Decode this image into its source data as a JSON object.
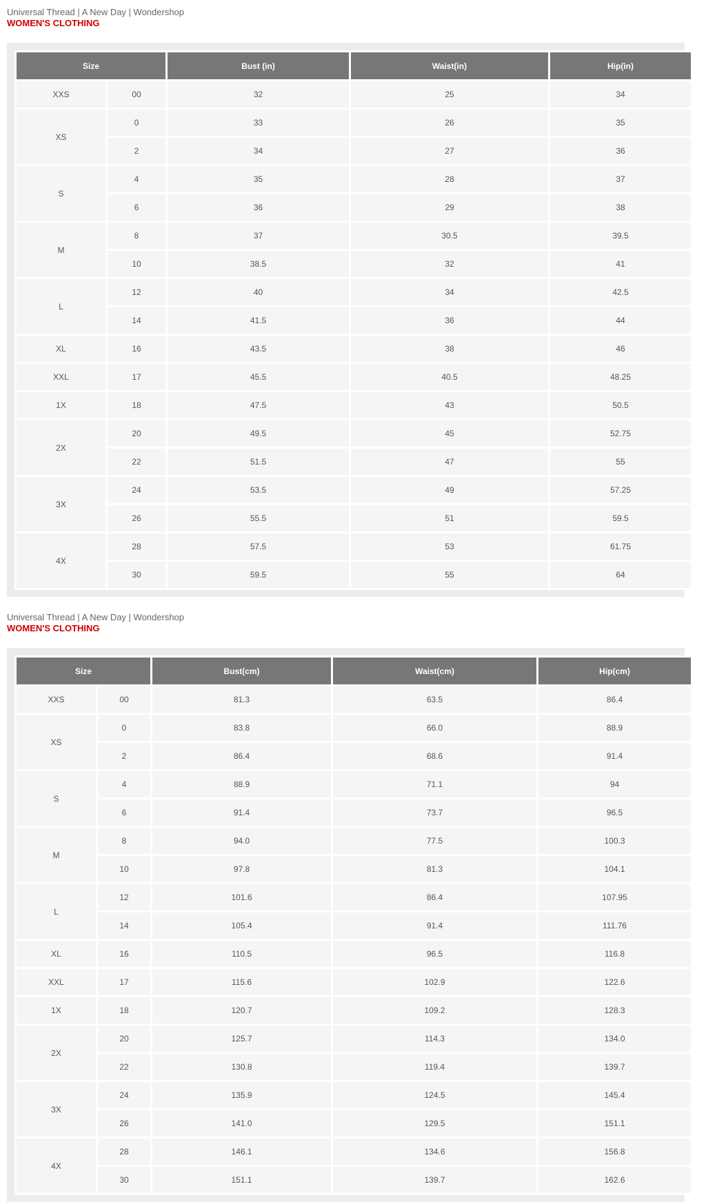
{
  "sections": [
    {
      "brands": "Universal Thread | A New Day | Wondershop",
      "title": "WOMEN'S CLOTHING",
      "headers": [
        "Size",
        "Bust (in)",
        "Waist(in)",
        "Hip(in)"
      ],
      "groups": [
        {
          "size": "XXS",
          "rows": [
            [
              "00",
              "32",
              "25",
              "34"
            ]
          ]
        },
        {
          "size": "XS",
          "rows": [
            [
              "0",
              "33",
              "26",
              "35"
            ],
            [
              "2",
              "34",
              "27",
              "36"
            ]
          ]
        },
        {
          "size": "S",
          "rows": [
            [
              "4",
              "35",
              "28",
              "37"
            ],
            [
              "6",
              "36",
              "29",
              "38"
            ]
          ]
        },
        {
          "size": "M",
          "rows": [
            [
              "8",
              "37",
              "30.5",
              "39.5"
            ],
            [
              "10",
              "38.5",
              "32",
              "41"
            ]
          ]
        },
        {
          "size": "L",
          "rows": [
            [
              "12",
              "40",
              "34",
              "42.5"
            ],
            [
              "14",
              "41.5",
              "36",
              "44"
            ]
          ]
        },
        {
          "size": "XL",
          "rows": [
            [
              "16",
              "43.5",
              "38",
              "46"
            ]
          ]
        },
        {
          "size": "XXL",
          "rows": [
            [
              "17",
              "45.5",
              "40.5",
              "48.25"
            ]
          ]
        },
        {
          "size": "1X",
          "rows": [
            [
              "18",
              "47.5",
              "43",
              "50.5"
            ]
          ]
        },
        {
          "size": "2X",
          "rows": [
            [
              "20",
              "49.5",
              "45",
              "52.75"
            ],
            [
              "22",
              "51.5",
              "47",
              "55"
            ]
          ]
        },
        {
          "size": "3X",
          "rows": [
            [
              "24",
              "53.5",
              "49",
              "57.25"
            ],
            [
              "26",
              "55.5",
              "51",
              "59.5"
            ]
          ]
        },
        {
          "size": "4X",
          "rows": [
            [
              "28",
              "57.5",
              "53",
              "61.75"
            ],
            [
              "30",
              "59.5",
              "55",
              "64"
            ]
          ]
        }
      ]
    },
    {
      "brands": "Universal Thread | A New Day | Wondershop",
      "title": "WOMEN'S CLOTHING",
      "headers": [
        "Size",
        "Bust(cm)",
        "Waist(cm)",
        "Hip(cm)"
      ],
      "groups": [
        {
          "size": "XXS",
          "rows": [
            [
              "00",
              "81.3",
              "63.5",
              "86.4"
            ]
          ]
        },
        {
          "size": "XS",
          "rows": [
            [
              "0",
              "83.8",
              "66.0",
              "88.9"
            ],
            [
              "2",
              "86.4",
              "68.6",
              "91.4"
            ]
          ]
        },
        {
          "size": "S",
          "rows": [
            [
              "4",
              "88.9",
              "71.1",
              "94"
            ],
            [
              "6",
              "91.4",
              "73.7",
              "96.5"
            ]
          ]
        },
        {
          "size": "M",
          "rows": [
            [
              "8",
              "94.0",
              "77.5",
              "100.3"
            ],
            [
              "10",
              "97.8",
              "81.3",
              "104.1"
            ]
          ]
        },
        {
          "size": "L",
          "rows": [
            [
              "12",
              "101.6",
              "86.4",
              "107.95"
            ],
            [
              "14",
              "105.4",
              "91.4",
              "111.76"
            ]
          ]
        },
        {
          "size": "XL",
          "rows": [
            [
              "16",
              "110.5",
              "96.5",
              "116.8"
            ]
          ]
        },
        {
          "size": "XXL",
          "rows": [
            [
              "17",
              "115.6",
              "102.9",
              "122.6"
            ]
          ]
        },
        {
          "size": "1X",
          "rows": [
            [
              "18",
              "120.7",
              "109.2",
              "128.3"
            ]
          ]
        },
        {
          "size": "2X",
          "rows": [
            [
              "20",
              "125.7",
              "114.3",
              "134.0"
            ],
            [
              "22",
              "130.8",
              "119.4",
              "139.7"
            ]
          ]
        },
        {
          "size": "3X",
          "rows": [
            [
              "24",
              "135.9",
              "124.5",
              "145.4"
            ],
            [
              "26",
              "141.0",
              "129.5",
              "151.1"
            ]
          ]
        },
        {
          "size": "4X",
          "rows": [
            [
              "28",
              "146.1",
              "134.6",
              "156.8"
            ],
            [
              "30",
              "151.1",
              "139.7",
              "162.6"
            ]
          ]
        }
      ]
    }
  ]
}
